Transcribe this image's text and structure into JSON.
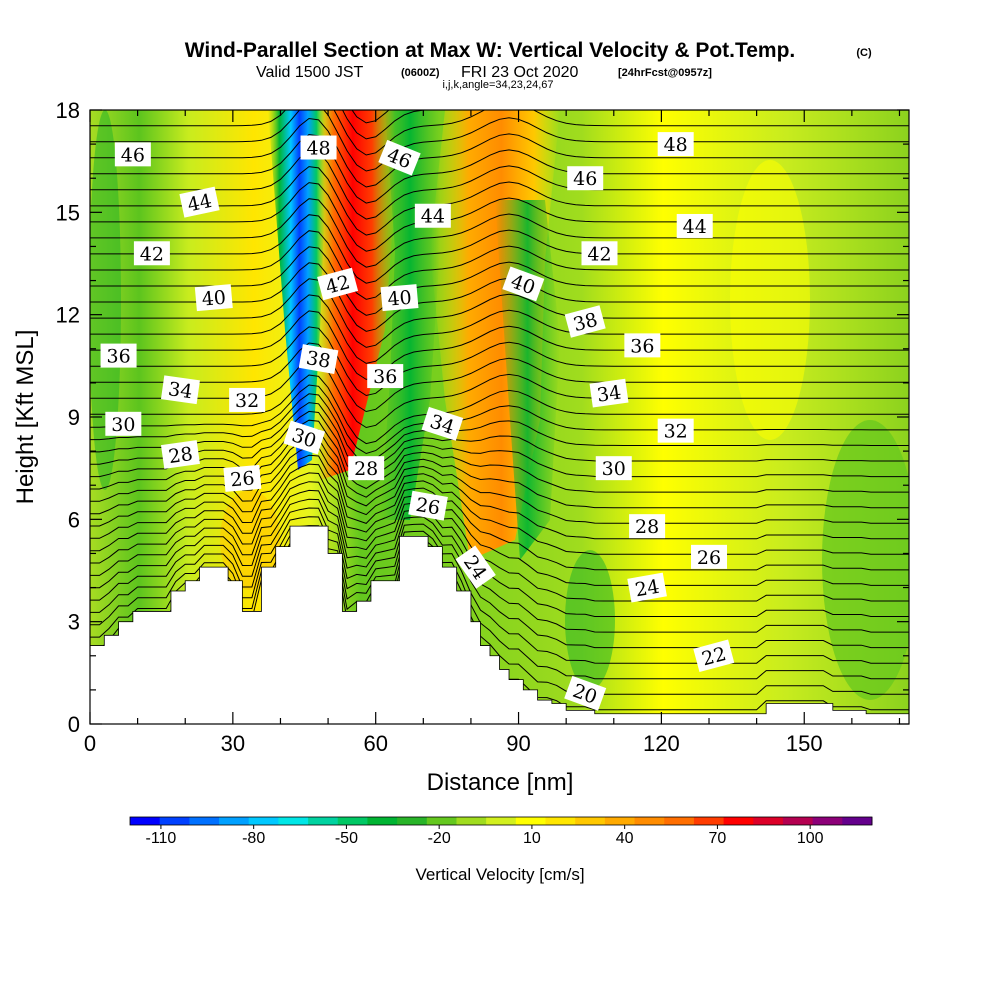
{
  "header": {
    "title": "Wind-Parallel Section at Max W: Vertical Velocity & Pot.Temp.",
    "copyright": "(C)",
    "valid_prefix": "Valid 1500 JST",
    "valid_utc": "(0600Z)",
    "valid_date": "FRI 23 Oct 2020",
    "forecast": "[24hrFcst@0957z]",
    "grid_info": "i,j,k,angle=34,23,24,67"
  },
  "chart_data": {
    "type": "heatmap",
    "xlabel": "Distance [nm]",
    "ylabel": "Height [Kft MSL]",
    "xlim": [
      0,
      172
    ],
    "ylim": [
      0,
      18
    ],
    "x_ticks": [
      0,
      30,
      60,
      90,
      120,
      150
    ],
    "y_ticks": [
      0,
      3,
      6,
      9,
      12,
      15,
      18
    ],
    "colorbar": {
      "label": "Vertical Velocity [cm/s]",
      "tick_labels": [
        "-110",
        "-80",
        "-50",
        "-20",
        "10",
        "40",
        "70",
        "100"
      ],
      "tick_values": [
        -110,
        -80,
        -50,
        -20,
        10,
        40,
        70,
        100
      ],
      "range": [
        -120,
        120
      ],
      "step": 10,
      "colors": [
        "#0000ff",
        "#0040ff",
        "#0070ff",
        "#00a0ff",
        "#00c8ff",
        "#00e6e6",
        "#00d2a0",
        "#00c864",
        "#00b432",
        "#28b428",
        "#64c81e",
        "#a0dc1e",
        "#d2f01e",
        "#ffff00",
        "#ffe600",
        "#ffc800",
        "#ffaa00",
        "#ff8c00",
        "#ff6e00",
        "#ff3c00",
        "#ff0000",
        "#dc0028",
        "#b40050",
        "#8c0078",
        "#64008c"
      ]
    },
    "velocity_features": [
      {
        "type": "downdraft",
        "x_center": 44,
        "y_range": [
          9,
          18
        ],
        "peak_w": -110
      },
      {
        "type": "updraft",
        "x_center": 53,
        "y_range": [
          10,
          18
        ],
        "peak_w": 90
      },
      {
        "type": "updraft",
        "x_center": 85,
        "y_range": [
          7,
          17
        ],
        "peak_w": 40
      },
      {
        "type": "downdraft",
        "x_center": 68,
        "y_range": [
          8,
          16
        ],
        "peak_w": -40
      }
    ],
    "terrain_kft": {
      "x": [
        0,
        3,
        6,
        9,
        13,
        17,
        20,
        23,
        26,
        29,
        32,
        36,
        39,
        42,
        45,
        48,
        50,
        53,
        56,
        59,
        62,
        65,
        68,
        71,
        74,
        77,
        80,
        82,
        84,
        86,
        88,
        91,
        94,
        97,
        100,
        106,
        113,
        120,
        127,
        135,
        142,
        149,
        156,
        163,
        172
      ],
      "y": [
        2.3,
        2.6,
        3.0,
        3.3,
        3.3,
        3.9,
        4.2,
        4.6,
        4.6,
        4.2,
        3.3,
        4.6,
        5.2,
        5.8,
        5.8,
        5.8,
        5.0,
        3.3,
        3.6,
        4.2,
        4.2,
        5.5,
        5.5,
        5.2,
        4.6,
        3.9,
        3.0,
        2.3,
        2.0,
        1.6,
        1.3,
        1.0,
        0.7,
        0.6,
        0.4,
        0.3,
        0.3,
        0.3,
        0.3,
        0.3,
        0.6,
        0.6,
        0.4,
        0.3,
        0.3
      ]
    },
    "isentrope_labels": [
      {
        "value": "46",
        "x": 9,
        "y": 16.7,
        "angle": 0
      },
      {
        "value": "44",
        "x": 23,
        "y": 15.3,
        "angle": -12
      },
      {
        "value": "42",
        "x": 13,
        "y": 13.8,
        "angle": 0
      },
      {
        "value": "40",
        "x": 26,
        "y": 12.5,
        "angle": -5
      },
      {
        "value": "48",
        "x": 48,
        "y": 16.9,
        "angle": 0
      },
      {
        "value": "46",
        "x": 65,
        "y": 16.6,
        "angle": 22
      },
      {
        "value": "44",
        "x": 72,
        "y": 14.9,
        "angle": 0
      },
      {
        "value": "42",
        "x": 52,
        "y": 12.9,
        "angle": -15
      },
      {
        "value": "40",
        "x": 65,
        "y": 12.5,
        "angle": -5
      },
      {
        "value": "38",
        "x": 48,
        "y": 10.7,
        "angle": 10
      },
      {
        "value": "36",
        "x": 62,
        "y": 10.2,
        "angle": 0
      },
      {
        "value": "34",
        "x": 74,
        "y": 8.8,
        "angle": 18
      },
      {
        "value": "32",
        "x": 33,
        "y": 9.5,
        "angle": 0
      },
      {
        "value": "30",
        "x": 45,
        "y": 8.4,
        "angle": 18
      },
      {
        "value": "28",
        "x": 58,
        "y": 7.5,
        "angle": 0
      },
      {
        "value": "26",
        "x": 71,
        "y": 6.4,
        "angle": 10
      },
      {
        "value": "24",
        "x": 81,
        "y": 4.6,
        "angle": 55
      },
      {
        "value": "36",
        "x": 6,
        "y": 10.8,
        "angle": 0
      },
      {
        "value": "34",
        "x": 19,
        "y": 9.8,
        "angle": 8
      },
      {
        "value": "30",
        "x": 7,
        "y": 8.8,
        "angle": 0
      },
      {
        "value": "28",
        "x": 19,
        "y": 7.9,
        "angle": -8
      },
      {
        "value": "26",
        "x": 32,
        "y": 7.2,
        "angle": -5
      },
      {
        "value": "48",
        "x": 123,
        "y": 17.0,
        "angle": 0
      },
      {
        "value": "46",
        "x": 104,
        "y": 16.0,
        "angle": 0
      },
      {
        "value": "44",
        "x": 127,
        "y": 14.6,
        "angle": 0
      },
      {
        "value": "42",
        "x": 107,
        "y": 13.8,
        "angle": 0
      },
      {
        "value": "40",
        "x": 91,
        "y": 12.9,
        "angle": 20
      },
      {
        "value": "38",
        "x": 104,
        "y": 11.8,
        "angle": -15
      },
      {
        "value": "36",
        "x": 116,
        "y": 11.1,
        "angle": 0
      },
      {
        "value": "34",
        "x": 109,
        "y": 9.7,
        "angle": -8
      },
      {
        "value": "32",
        "x": 123,
        "y": 8.6,
        "angle": 0
      },
      {
        "value": "30",
        "x": 110,
        "y": 7.5,
        "angle": 0
      },
      {
        "value": "28",
        "x": 117,
        "y": 5.8,
        "angle": 0
      },
      {
        "value": "26",
        "x": 130,
        "y": 4.9,
        "angle": 0
      },
      {
        "value": "24",
        "x": 117,
        "y": 4.0,
        "angle": -10
      },
      {
        "value": "22",
        "x": 131,
        "y": 2.0,
        "angle": -15
      },
      {
        "value": "20",
        "x": 104,
        "y": 0.9,
        "angle": 20
      }
    ]
  }
}
